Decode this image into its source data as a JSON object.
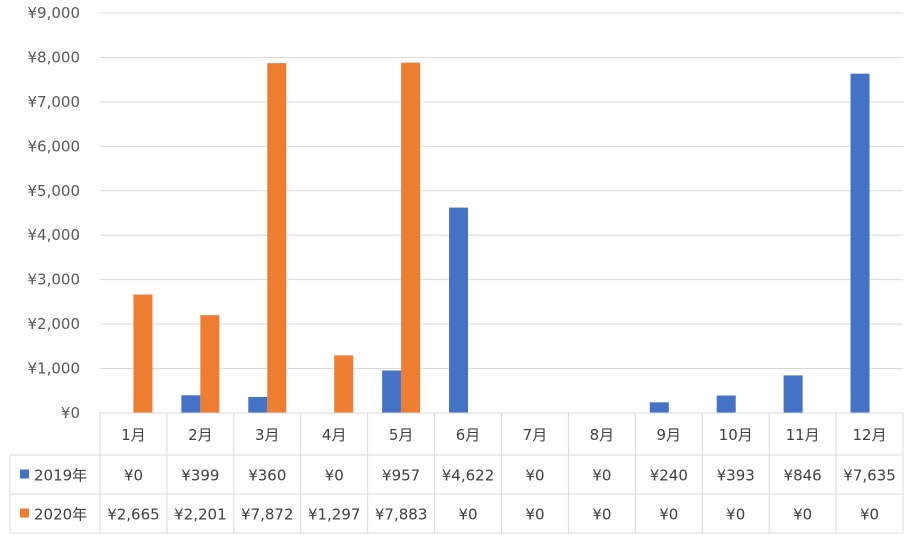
{
  "chart_data": {
    "type": "bar",
    "categories": [
      "1月",
      "2月",
      "3月",
      "4月",
      "5月",
      "6月",
      "7月",
      "8月",
      "9月",
      "10月",
      "11月",
      "12月"
    ],
    "series": [
      {
        "name": "2019年",
        "color": "#4472C4",
        "values": [
          0,
          399,
          360,
          0,
          957,
          4622,
          0,
          0,
          240,
          393,
          846,
          7635
        ],
        "labels": [
          "¥0",
          "¥399",
          "¥360",
          "¥0",
          "¥957",
          "¥4,622",
          "¥0",
          "¥0",
          "¥240",
          "¥393",
          "¥846",
          "¥7,635"
        ]
      },
      {
        "name": "2020年",
        "color": "#ED7D31",
        "values": [
          2665,
          2201,
          7872,
          1297,
          7883,
          0,
          0,
          0,
          0,
          0,
          0,
          0
        ],
        "labels": [
          "¥2,665",
          "¥2,201",
          "¥7,872",
          "¥1,297",
          "¥7,883",
          "¥0",
          "¥0",
          "¥0",
          "¥0",
          "¥0",
          "¥0",
          "¥0"
        ]
      }
    ],
    "ylim": [
      0,
      9000
    ],
    "yticks": [
      0,
      1000,
      2000,
      3000,
      4000,
      5000,
      6000,
      7000,
      8000,
      9000
    ],
    "ytick_labels": [
      "¥0",
      "¥1,000",
      "¥2,000",
      "¥3,000",
      "¥4,000",
      "¥5,000",
      "¥6,000",
      "¥7,000",
      "¥8,000",
      "¥9,000"
    ],
    "grid": true,
    "legend": "data-table",
    "gridline_color": "#D9D9D9"
  }
}
